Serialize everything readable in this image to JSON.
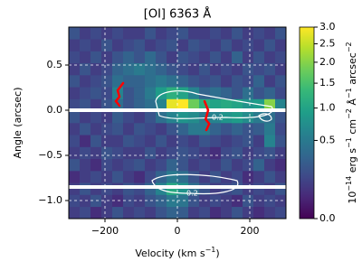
{
  "chart_data": {
    "type": "heatmap",
    "title": "[OI] 6363 Å",
    "xlabel": [
      {
        "text": "Velocity (km s"
      },
      {
        "sup": "−1"
      },
      {
        "text": ")"
      }
    ],
    "ylabel": "Angle (arcsec)",
    "xlim": [
      -300,
      300
    ],
    "ylim": [
      -1.2,
      0.92
    ],
    "xticks": [
      {
        "value": -200,
        "label": "−200"
      },
      0,
      200
    ],
    "yticks": [
      {
        "value": -1.0,
        "label": "−1.0"
      },
      {
        "value": -0.5,
        "label": "−0.5"
      },
      {
        "value": 0.0,
        "label": "0.0"
      },
      {
        "value": 0.5,
        "label": "0.5"
      }
    ],
    "grid": true,
    "colormap": "viridis",
    "color_scale": "sqrt",
    "clim": [
      0,
      3
    ],
    "colorbar_ticks": [
      {
        "value": 0,
        "label": "0.0"
      },
      {
        "value": 0.5,
        "label": "0.5"
      },
      {
        "value": 1,
        "label": "1.0"
      },
      {
        "value": 1.5,
        "label": "1.5"
      },
      {
        "value": 2,
        "label": "2.0"
      },
      {
        "value": 2.5,
        "label": "2.5"
      },
      {
        "value": 3,
        "label": "3.0"
      }
    ],
    "colorbar_label": [
      {
        "text": "10"
      },
      {
        "sup": "−14"
      },
      {
        "text": " erg s"
      },
      {
        "sup": "−1"
      },
      {
        "text": " cm"
      },
      {
        "sup": "−2"
      },
      {
        "text": " Å"
      },
      {
        "sup": "−1"
      },
      {
        "text": " arcsec"
      },
      {
        "sup": "−2"
      }
    ],
    "xbins": [
      -300,
      -270,
      -240,
      -210,
      -180,
      -150,
      -120,
      -90,
      -60,
      -30,
      0,
      30,
      60,
      90,
      120,
      150,
      180,
      210,
      240,
      270,
      300
    ],
    "ybins": [
      -1.2,
      -1.0675,
      -0.935,
      -0.8025,
      -0.67,
      -0.5375,
      -0.405,
      -0.2725,
      -0.14,
      -0.0075,
      0.125,
      0.2575,
      0.39,
      0.5225,
      0.655,
      0.7875,
      0.92
    ],
    "z": [
      [
        0.1,
        0.15,
        0.05,
        0.1,
        0.2,
        0.1,
        0.15,
        0.1,
        0.2,
        0.3,
        0.25,
        0.1,
        0.15,
        0.05,
        0.1,
        0.2,
        0.1,
        0.05,
        0.1,
        0.15
      ],
      [
        0.15,
        0.1,
        0.2,
        0.1,
        0.05,
        0.15,
        0.1,
        0.2,
        0.3,
        0.5,
        0.45,
        0.2,
        0.1,
        0.15,
        0.1,
        0.05,
        0.2,
        0.1,
        0.15,
        0.1
      ],
      [
        0.1,
        0.2,
        0.1,
        0.15,
        0.1,
        0.2,
        0.15,
        0.3,
        0.6,
        1.1,
        0.8,
        0.4,
        0.2,
        0.1,
        0.15,
        0.2,
        0.1,
        0.15,
        0.1,
        0.2
      ],
      [
        0.05,
        0.1,
        0.15,
        0.1,
        0.2,
        0.1,
        0.05,
        0.15,
        0.3,
        0.5,
        0.4,
        0.2,
        0.1,
        0.2,
        0.1,
        0.15,
        0.05,
        0.1,
        0.2,
        0.1
      ],
      [
        0.2,
        0.1,
        0.05,
        0.15,
        0.1,
        0.15,
        0.2,
        0.1,
        0.15,
        0.3,
        0.2,
        0.1,
        0.15,
        0.1,
        0.2,
        0.1,
        0.15,
        0.3,
        0.1,
        0.05
      ],
      [
        0.1,
        0.15,
        0.1,
        0.2,
        0.15,
        0.1,
        0.1,
        0.2,
        0.1,
        0.15,
        0.2,
        0.15,
        0.1,
        0.05,
        0.15,
        0.2,
        0.1,
        0.15,
        0.2,
        0.1
      ],
      [
        0.15,
        0.05,
        0.2,
        0.1,
        0.1,
        0.2,
        0.15,
        0.1,
        0.2,
        0.1,
        0.15,
        0.1,
        0.2,
        0.15,
        0.1,
        0.15,
        0.2,
        0.1,
        0.6,
        0.2
      ],
      [
        0.1,
        0.2,
        0.1,
        0.15,
        0.2,
        0.1,
        0.2,
        0.15,
        0.1,
        0.2,
        0.3,
        0.5,
        0.5,
        0.3,
        0.2,
        0.3,
        0.2,
        0.25,
        0.5,
        0.15
      ],
      [
        0.2,
        0.1,
        0.15,
        0.1,
        0.25,
        0.15,
        0.1,
        0.2,
        0.4,
        0.6,
        0.8,
        0.7,
        0.5,
        0.6,
        0.8,
        0.9,
        0.7,
        0.5,
        0.4,
        0.2
      ],
      [
        0.15,
        0.2,
        0.1,
        0.2,
        0.4,
        0.2,
        0.3,
        0.4,
        0.6,
        2.8,
        3.0,
        1.8,
        1.2,
        1.0,
        1.1,
        1.0,
        0.8,
        0.9,
        2.0,
        0.6
      ],
      [
        0.1,
        0.15,
        0.2,
        0.15,
        0.6,
        0.2,
        0.3,
        0.5,
        0.9,
        1.2,
        1.0,
        0.6,
        0.3,
        0.4,
        0.3,
        0.2,
        0.4,
        0.2,
        0.3,
        0.15
      ],
      [
        0.2,
        0.1,
        0.15,
        0.2,
        0.4,
        0.3,
        0.3,
        0.4,
        0.5,
        0.4,
        0.3,
        0.2,
        0.15,
        0.2,
        0.1,
        0.2,
        0.15,
        0.3,
        0.1,
        0.2
      ],
      [
        0.1,
        0.2,
        0.1,
        0.15,
        0.3,
        0.4,
        0.5,
        0.4,
        0.3,
        0.2,
        0.15,
        0.1,
        0.2,
        0.1,
        0.15,
        0.1,
        0.2,
        0.15,
        0.2,
        0.1
      ],
      [
        0.15,
        0.1,
        0.2,
        0.1,
        0.2,
        0.3,
        0.2,
        0.35,
        0.2,
        0.1,
        0.2,
        0.15,
        0.1,
        0.2,
        0.1,
        0.3,
        0.1,
        0.2,
        0.1,
        0.15
      ],
      [
        0.1,
        0.15,
        0.1,
        0.2,
        0.1,
        0.15,
        0.2,
        0.1,
        0.15,
        0.2,
        0.1,
        0.2,
        0.15,
        0.1,
        0.2,
        0.1,
        0.15,
        0.1,
        0.2,
        0.1
      ],
      [
        0.2,
        0.1,
        0.15,
        0.1,
        0.15,
        0.1,
        0.1,
        0.2,
        0.1,
        0.15,
        0.2,
        0.1,
        0.1,
        0.15,
        0.1,
        0.2,
        0.1,
        0.15,
        0.1,
        0.2
      ]
    ],
    "hlines": [
      0.0,
      -0.85
    ],
    "hline_color": "#ffffff",
    "curves": [
      {
        "color": "#ff0000",
        "x": [
          -150,
          -165,
          -160,
          -170,
          -160
        ],
        "y": [
          0.3,
          0.22,
          0.15,
          0.1,
          0.05
        ]
      },
      {
        "color": "#ff0000",
        "x": [
          75,
          85,
          78,
          88,
          80
        ],
        "y": [
          0.1,
          0.0,
          -0.1,
          -0.15,
          -0.22
        ]
      }
    ],
    "contour_label": "0.2"
  }
}
